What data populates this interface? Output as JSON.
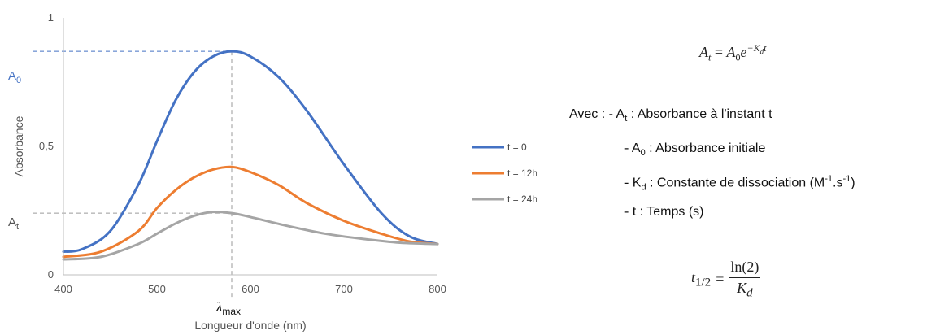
{
  "chart_data": {
    "type": "line",
    "xlabel": "Longueur d'onde (nm)",
    "ylabel": "Absorbance",
    "xlim": [
      400,
      800
    ],
    "ylim": [
      0,
      1
    ],
    "x_ticks": [
      "400",
      "500",
      "600",
      "700",
      "800"
    ],
    "y_ticks": [
      "0",
      "0,5",
      "1"
    ],
    "lambda_max": 580,
    "series": [
      {
        "name": "t = 0",
        "color": "#4472C4",
        "x": [
          400,
          420,
          450,
          480,
          500,
          520,
          540,
          560,
          580,
          600,
          630,
          660,
          700,
          740,
          770,
          800
        ],
        "y": [
          0.09,
          0.1,
          0.17,
          0.35,
          0.52,
          0.68,
          0.79,
          0.85,
          0.87,
          0.85,
          0.77,
          0.64,
          0.43,
          0.24,
          0.15,
          0.12
        ]
      },
      {
        "name": "t = 12h",
        "color": "#ED7D31",
        "x": [
          400,
          440,
          480,
          500,
          520,
          540,
          560,
          580,
          600,
          630,
          660,
          700,
          740,
          770,
          800
        ],
        "y": [
          0.07,
          0.09,
          0.17,
          0.26,
          0.33,
          0.38,
          0.41,
          0.42,
          0.4,
          0.35,
          0.28,
          0.21,
          0.16,
          0.13,
          0.12
        ]
      },
      {
        "name": "t = 24h",
        "color": "#A5A5A5",
        "x": [
          400,
          440,
          480,
          500,
          520,
          540,
          560,
          580,
          600,
          640,
          680,
          720,
          760,
          800
        ],
        "y": [
          0.06,
          0.07,
          0.12,
          0.16,
          0.2,
          0.23,
          0.245,
          0.24,
          0.225,
          0.19,
          0.16,
          0.14,
          0.125,
          0.12
        ]
      }
    ],
    "annotations": {
      "A0_label": "A",
      "A0_sub": "0",
      "At_label": "A",
      "At_sub": "t",
      "A0_value": 0.87,
      "At_value": 0.24,
      "lambda_label": "λ",
      "lambda_sub": "max"
    }
  },
  "panel": {
    "formula1": {
      "A": "A",
      "t": "t",
      "eq": " = ",
      "A0": "A",
      "zero": "0",
      "e": "e",
      "exp": "−K",
      "d": "d",
      "texp": "t"
    },
    "avec": "Avec : - A",
    "avec_sub": "t",
    "avec_rest": " : Absorbance à l'instant t",
    "line2": "- A",
    "line2_sub": "0",
    "line2_rest": " : Absorbance initiale",
    "line3": "- K",
    "line3_sub": "d",
    "line3_rest": " : Constante de dissociation (M",
    "line3_sup1": "-1",
    "line3_mid": ".s",
    "line3_sup2": "-1",
    "line3_end": ")",
    "line4": "- t : Temps (s)",
    "formula2": {
      "lhs": "t",
      "lhs_sub": "1/2",
      "eq": " = ",
      "num": "ln(2)",
      "den": "K",
      "den_sub": "d"
    }
  }
}
